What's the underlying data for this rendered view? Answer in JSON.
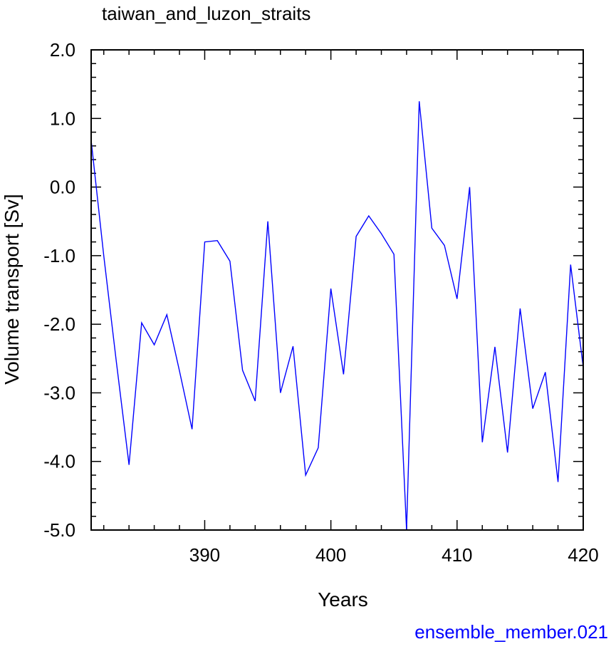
{
  "chart_data": {
    "type": "line",
    "title": "taiwan_and_luzon_straits",
    "xlabel": "Years",
    "ylabel": "Volume transport [Sv]",
    "xlim": [
      381,
      420
    ],
    "ylim": [
      -5.0,
      2.0
    ],
    "x_ticks": [
      390,
      400,
      410,
      420
    ],
    "x_tick_labels": [
      "390",
      "400",
      "410",
      "420"
    ],
    "y_ticks": [
      2.0,
      1.0,
      0.0,
      -1.0,
      -2.0,
      -3.0,
      -4.0,
      -5.0
    ],
    "y_tick_labels": [
      "2.0",
      "1.0",
      "0.0",
      "-1.0",
      "-2.0",
      "-3.0",
      "-4.0",
      "-5.0"
    ],
    "grid": false,
    "line_color": "#0000ff",
    "series": [
      {
        "x": [
          381,
          382,
          383,
          384,
          385,
          386,
          387,
          388,
          389,
          390,
          391,
          392,
          393,
          394,
          395,
          396,
          397,
          398,
          399,
          400,
          401,
          402,
          403,
          404,
          405,
          406,
          407,
          408,
          409,
          410,
          411,
          412,
          413,
          414,
          415,
          416,
          417,
          418,
          419,
          420
        ],
        "values": [
          0.68,
          -1.0,
          -2.55,
          -4.05,
          -1.98,
          -2.3,
          -1.86,
          -2.68,
          -3.53,
          -0.8,
          -0.78,
          -1.08,
          -2.67,
          -3.12,
          -0.5,
          -3.0,
          -2.32,
          -4.2,
          -3.8,
          -1.48,
          -2.73,
          -0.72,
          -0.42,
          -0.68,
          -0.98,
          -5.0,
          1.25,
          -0.6,
          -0.85,
          -1.63,
          0.0,
          -3.72,
          -2.33,
          -3.87,
          -1.77,
          -3.23,
          -2.7,
          -4.3,
          -1.13,
          -2.63
        ]
      }
    ]
  },
  "footer_text": "ensemble_member.021"
}
